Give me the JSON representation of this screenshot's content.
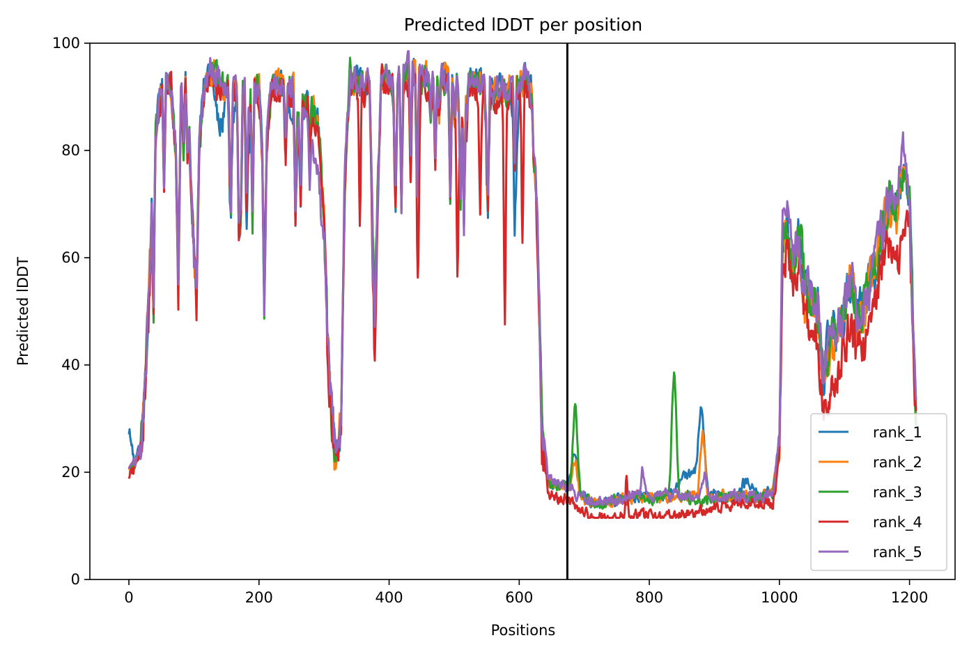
{
  "chart_data": {
    "type": "line",
    "title": "Predicted lDDT per position",
    "xlabel": "Positions",
    "ylabel": "Predicted lDDT",
    "xlim": [
      -60,
      1270
    ],
    "ylim": [
      0,
      100
    ],
    "xticks": [
      0,
      200,
      400,
      600,
      800,
      1000,
      1200
    ],
    "yticks": [
      0,
      20,
      40,
      60,
      80,
      100
    ],
    "vline_x": 674,
    "grid": false,
    "legend_position": "lower-right",
    "base_profile": [
      [
        0,
        20
      ],
      [
        10,
        21
      ],
      [
        20,
        26
      ],
      [
        30,
        50
      ],
      [
        40,
        82
      ],
      [
        52,
        93
      ],
      [
        65,
        92
      ],
      [
        72,
        80
      ],
      [
        76,
        55
      ],
      [
        80,
        90
      ],
      [
        90,
        93
      ],
      [
        95,
        75
      ],
      [
        100,
        60
      ],
      [
        104,
        52
      ],
      [
        108,
        80
      ],
      [
        115,
        90
      ],
      [
        125,
        94
      ],
      [
        140,
        92
      ],
      [
        160,
        91
      ],
      [
        180,
        91
      ],
      [
        200,
        91
      ],
      [
        205,
        80
      ],
      [
        208,
        52
      ],
      [
        212,
        82
      ],
      [
        220,
        92
      ],
      [
        240,
        92
      ],
      [
        260,
        90
      ],
      [
        280,
        88
      ],
      [
        290,
        85
      ],
      [
        298,
        75
      ],
      [
        305,
        45
      ],
      [
        312,
        30
      ],
      [
        318,
        23
      ],
      [
        326,
        28
      ],
      [
        332,
        75
      ],
      [
        340,
        94
      ],
      [
        355,
        92
      ],
      [
        370,
        92
      ],
      [
        375,
        60
      ],
      [
        378,
        48
      ],
      [
        382,
        70
      ],
      [
        388,
        94
      ],
      [
        400,
        93
      ],
      [
        420,
        93
      ],
      [
        440,
        94
      ],
      [
        460,
        93
      ],
      [
        480,
        93
      ],
      [
        500,
        92
      ],
      [
        520,
        93
      ],
      [
        540,
        92
      ],
      [
        560,
        90
      ],
      [
        580,
        91
      ],
      [
        600,
        92
      ],
      [
        610,
        93
      ],
      [
        620,
        90
      ],
      [
        628,
        65
      ],
      [
        635,
        28
      ],
      [
        645,
        18
      ],
      [
        660,
        17
      ],
      [
        674,
        17
      ],
      [
        690,
        15
      ],
      [
        710,
        14
      ],
      [
        740,
        14
      ],
      [
        780,
        15
      ],
      [
        820,
        15
      ],
      [
        860,
        15
      ],
      [
        900,
        15
      ],
      [
        940,
        15
      ],
      [
        970,
        15
      ],
      [
        990,
        16
      ],
      [
        1000,
        25
      ],
      [
        1005,
        62
      ],
      [
        1010,
        66
      ],
      [
        1020,
        58
      ],
      [
        1030,
        64
      ],
      [
        1040,
        55
      ],
      [
        1050,
        52
      ],
      [
        1060,
        50
      ],
      [
        1068,
        38
      ],
      [
        1074,
        42
      ],
      [
        1085,
        45
      ],
      [
        1095,
        48
      ],
      [
        1110,
        55
      ],
      [
        1120,
        48
      ],
      [
        1130,
        50
      ],
      [
        1140,
        55
      ],
      [
        1150,
        60
      ],
      [
        1160,
        65
      ],
      [
        1170,
        70
      ],
      [
        1180,
        68
      ],
      [
        1190,
        75
      ],
      [
        1200,
        70
      ],
      [
        1205,
        50
      ],
      [
        1210,
        30
      ]
    ],
    "series": [
      {
        "name": "rank_1",
        "color": "#1f77b4",
        "seed": 11,
        "offset": 0.5,
        "bumps": [
          [
            0,
            6,
            7
          ],
          [
            140,
            8,
            -8
          ],
          [
            160,
            6,
            -6
          ],
          [
            180,
            6,
            -6
          ],
          [
            208,
            2,
            -2
          ],
          [
            250,
            12,
            -4
          ],
          [
            595,
            5,
            -14
          ],
          [
            686,
            6,
            8
          ],
          [
            860,
            22,
            4
          ],
          [
            880,
            6,
            15
          ],
          [
            950,
            10,
            3
          ]
        ]
      },
      {
        "name": "rank_2",
        "color": "#ff7f0e",
        "seed": 23,
        "offset": 0.4,
        "bumps": [
          [
            318,
            6,
            -2
          ],
          [
            686,
            6,
            6
          ],
          [
            882,
            5,
            12
          ],
          [
            1040,
            8,
            -6
          ]
        ]
      },
      {
        "name": "rank_3",
        "color": "#2ca02c",
        "seed": 37,
        "offset": 0.3,
        "bumps": [
          [
            686,
            5,
            16
          ],
          [
            838,
            5,
            23
          ],
          [
            880,
            8,
            -1
          ],
          [
            1180,
            8,
            2
          ]
        ]
      },
      {
        "name": "rank_4",
        "color": "#d62728",
        "seed": 51,
        "offset": -0.6,
        "bumps": [
          [
            355,
            2,
            -25
          ],
          [
            378,
            2,
            -8
          ],
          [
            445,
            2,
            -28
          ],
          [
            505,
            2,
            -33
          ],
          [
            540,
            2,
            -22
          ],
          [
            578,
            2,
            -44
          ],
          [
            605,
            2,
            -28
          ],
          [
            700,
            120,
            -1.5
          ],
          [
            830,
            80,
            -2
          ],
          [
            765,
            2,
            8
          ],
          [
            1040,
            40,
            -5
          ],
          [
            1120,
            60,
            -6
          ],
          [
            1185,
            15,
            -8
          ]
        ]
      },
      {
        "name": "rank_5",
        "color": "#9467bd",
        "seed": 67,
        "offset": 0.6,
        "bumps": [
          [
            290,
            12,
            -10
          ],
          [
            430,
            3,
            4
          ],
          [
            790,
            3,
            5
          ],
          [
            885,
            4,
            4
          ],
          [
            1010,
            10,
            6
          ],
          [
            1190,
            8,
            6
          ]
        ]
      }
    ]
  }
}
